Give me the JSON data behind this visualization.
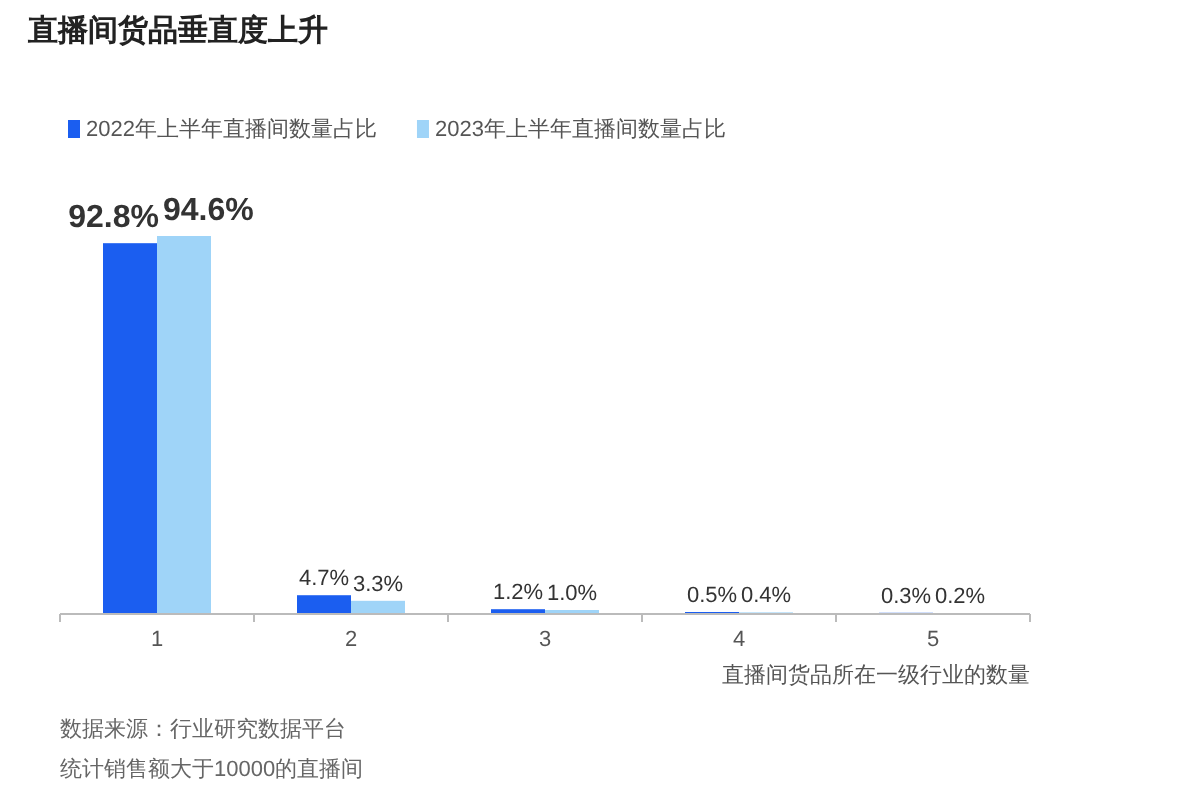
{
  "chart_data": {
    "type": "bar",
    "title": "直播间货品垂直度上升",
    "xlabel": "直播间货品所在一级行业的数量",
    "categories": [
      "1",
      "2",
      "3",
      "4",
      "5"
    ],
    "series": [
      {
        "name": "2022年上半年直播间数量占比",
        "color": "#1b5ef0",
        "values": [
          92.8,
          4.7,
          1.2,
          0.5,
          0.3
        ],
        "value_labels": [
          "92.8%",
          "4.7%",
          "1.2%",
          "0.5%",
          "0.3%"
        ]
      },
      {
        "name": "2023年上半年直播间数量占比",
        "color": "#9fd4f8",
        "values": [
          94.6,
          3.3,
          1.0,
          0.4,
          0.2
        ],
        "value_labels": [
          "94.6%",
          "3.3%",
          "1.0%",
          "0.4%",
          "0.2%"
        ]
      }
    ],
    "legend": "top left",
    "annotations": [
      "数据来源：行业研究数据平台",
      "统计销售额大于10000的直播间"
    ]
  }
}
